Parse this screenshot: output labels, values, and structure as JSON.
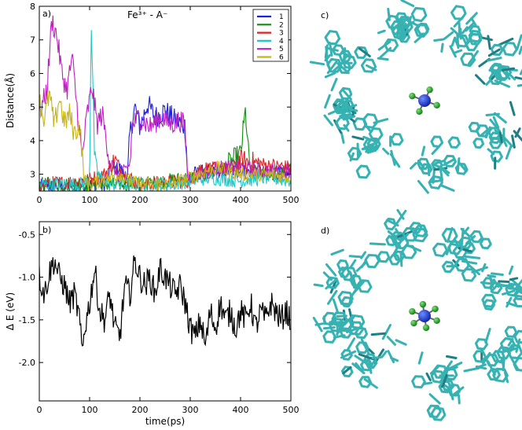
{
  "chart_data": [
    {
      "panel": "a)",
      "type": "line",
      "title": "Fe³⁺ - A⁻",
      "xlabel": "",
      "ylabel": "Distance(Å)",
      "xlim": [
        0,
        500
      ],
      "ylim": [
        2.5,
        8
      ],
      "xticks": [
        "0",
        "100",
        "200",
        "300",
        "400",
        "500"
      ],
      "yticks": [
        "3",
        "4",
        "5",
        "6",
        "7",
        "8"
      ],
      "legend_position": "top-right",
      "series": [
        {
          "name": "1",
          "color": "#1f1fe0",
          "x": [
            0,
            80,
            90,
            130,
            140,
            160,
            175,
            180,
            190,
            200,
            215,
            230,
            250,
            270,
            285,
            290,
            295,
            300,
            340,
            400,
            500
          ],
          "y": [
            2.65,
            2.65,
            2.7,
            2.7,
            3.1,
            3.2,
            2.8,
            4.2,
            5.0,
            4.4,
            5.1,
            4.7,
            4.9,
            4.6,
            4.5,
            4.4,
            2.8,
            3.0,
            3.1,
            3.1,
            3.0
          ]
        },
        {
          "name": "2",
          "color": "#108a10",
          "x": [
            0,
            80,
            100,
            200,
            300,
            360,
            400,
            410,
            415,
            420,
            450,
            500
          ],
          "y": [
            2.7,
            2.7,
            2.7,
            2.7,
            2.9,
            3.1,
            3.6,
            4.9,
            3.7,
            3.1,
            3.0,
            3.1
          ]
        },
        {
          "name": "3",
          "color": "#e02020",
          "x": [
            0,
            90,
            130,
            150,
            170,
            200,
            300,
            320,
            380,
            400,
            440,
            500
          ],
          "y": [
            2.7,
            2.8,
            3.0,
            3.4,
            3.0,
            2.7,
            2.8,
            3.2,
            3.1,
            3.4,
            3.3,
            3.2
          ]
        },
        {
          "name": "4",
          "color": "#20c8c8",
          "x": [
            0,
            80,
            100,
            103,
            110,
            120,
            140,
            160,
            200,
            260,
            300,
            340,
            400,
            450,
            500
          ],
          "y": [
            2.7,
            2.7,
            2.8,
            7.8,
            3.4,
            2.9,
            2.7,
            2.7,
            2.7,
            2.7,
            2.8,
            2.9,
            2.8,
            2.9,
            2.8
          ]
        },
        {
          "name": "5",
          "color": "#c020c0",
          "x": [
            0,
            15,
            25,
            35,
            45,
            55,
            65,
            75,
            85,
            95,
            105,
            115,
            125,
            140,
            160,
            180,
            185,
            200,
            220,
            240,
            260,
            280,
            290,
            295,
            320,
            360,
            400,
            450,
            500
          ],
          "y": [
            4.8,
            5.5,
            7.6,
            7.1,
            6.0,
            5.5,
            6.5,
            5.0,
            3.5,
            4.8,
            5.6,
            4.5,
            4.8,
            3.4,
            2.9,
            3.3,
            4.5,
            4.7,
            4.4,
            4.7,
            4.5,
            4.6,
            4.4,
            2.9,
            3.0,
            3.2,
            3.2,
            3.1,
            3.1
          ]
        },
        {
          "name": "6",
          "color": "#c8b414",
          "x": [
            0,
            10,
            20,
            30,
            40,
            50,
            60,
            70,
            80,
            85,
            90,
            100,
            120,
            140,
            160,
            180,
            200,
            220,
            260,
            300,
            350,
            400,
            450,
            500
          ],
          "y": [
            5.2,
            4.6,
            5.4,
            4.4,
            5.3,
            4.5,
            4.8,
            4.2,
            4.5,
            3.6,
            2.8,
            2.7,
            2.8,
            2.9,
            3.0,
            2.8,
            2.7,
            2.7,
            2.7,
            2.9,
            3.2,
            3.0,
            3.0,
            2.9
          ]
        }
      ]
    },
    {
      "panel": "b)",
      "type": "line",
      "title": "",
      "xlabel": "time(ps)",
      "ylabel": "Δ E (eV)",
      "xlim": [
        0,
        500
      ],
      "ylim": [
        -2.45,
        -0.35
      ],
      "xticks": [
        "0",
        "100",
        "200",
        "300",
        "400",
        "500"
      ],
      "yticks": [
        "-0.5",
        "-1.0",
        "-1.5",
        "-2.0"
      ],
      "series": [
        {
          "name": "",
          "color": "#000000",
          "x": [
            0,
            10,
            20,
            30,
            40,
            50,
            60,
            70,
            80,
            85,
            90,
            100,
            110,
            120,
            130,
            140,
            150,
            160,
            170,
            180,
            190,
            200,
            210,
            220,
            230,
            240,
            250,
            260,
            270,
            280,
            290,
            300,
            310,
            320,
            330,
            340,
            350,
            360,
            370,
            380,
            390,
            400,
            410,
            420,
            430,
            440,
            450,
            460,
            470,
            480,
            490,
            500
          ],
          "y": [
            -1.0,
            -1.2,
            -0.95,
            -0.8,
            -1.0,
            -1.1,
            -1.3,
            -1.2,
            -1.5,
            -1.9,
            -1.6,
            -1.3,
            -0.9,
            -1.4,
            -1.5,
            -1.2,
            -1.6,
            -1.7,
            -1.1,
            -1.2,
            -0.8,
            -1.0,
            -1.1,
            -1.0,
            -1.2,
            -0.9,
            -1.0,
            -1.1,
            -1.2,
            -1.1,
            -1.3,
            -1.6,
            -1.7,
            -1.5,
            -1.8,
            -1.4,
            -1.6,
            -1.3,
            -1.5,
            -1.4,
            -1.6,
            -1.4,
            -1.5,
            -1.3,
            -1.6,
            -1.4,
            -1.5,
            -1.3,
            -1.4,
            -1.5,
            -1.4,
            -1.5
          ]
        }
      ]
    }
  ],
  "images": [
    {
      "panel": "c)",
      "description_icon": "molecular-structure-fe-tetrahedral"
    },
    {
      "panel": "d)",
      "description_icon": "molecular-structure-fe-octahedral"
    }
  ],
  "colors": {
    "frame": "#000000",
    "stick": "#37b2b2",
    "stick_dark": "#1f7f85",
    "metal": "#1030d8",
    "ligand": "#18a018"
  }
}
